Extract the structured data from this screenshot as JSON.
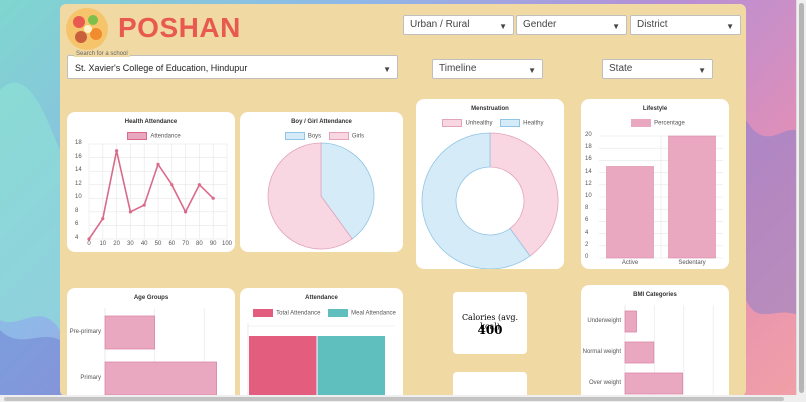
{
  "brand": "POSHAN",
  "filters": {
    "urban_rural": "Urban / Rural",
    "gender": "Gender",
    "district": "District",
    "timeline": "Timeline",
    "state": "State"
  },
  "school": {
    "caption": "Search for a school",
    "value": "St. Xavier's College of Education, Hindupur"
  },
  "colors": {
    "pink": "#d96a8a",
    "pink_fill": "#eaa7c0",
    "blue_fill": "#d6ebf8",
    "blue_line": "#8fc5e6",
    "teal": "#5fbfbf",
    "red": "#e35d7f"
  },
  "charts": {
    "health": {
      "title": "Health Attendance",
      "legend": "Attendance",
      "y_ticks": [
        "18",
        "16",
        "14",
        "12",
        "10",
        "8",
        "6",
        "4"
      ],
      "x_ticks": [
        "0",
        "10",
        "20",
        "30",
        "40",
        "50",
        "60",
        "70",
        "80",
        "90",
        "100"
      ]
    },
    "boygirl": {
      "title": "Boy / Girl Attendance",
      "legend_a": "Boys",
      "legend_b": "Girls"
    },
    "menstruation": {
      "title": "Menstruation",
      "legend_a": "Unhealthy",
      "legend_b": "Healthy"
    },
    "lifestyle": {
      "title": "Lifestyle",
      "legend": "Percentage",
      "y_ticks": [
        "20",
        "18",
        "16",
        "14",
        "12",
        "10",
        "8",
        "6",
        "4",
        "2",
        "0"
      ],
      "x_ticks": [
        "Active",
        "Sedentary"
      ]
    },
    "age": {
      "title": "Age Groups",
      "labels": [
        "Pre-primary",
        "Primary"
      ]
    },
    "attendance": {
      "title": "Attendance",
      "legend_a": "Total Attendance",
      "legend_b": "Meal Attendance"
    },
    "calories": {
      "label": "Calories (avg. kcal)",
      "value": "400"
    },
    "bmi": {
      "title": "BMI Categories",
      "labels": [
        "Underweight",
        "Normal weight",
        "Over weight"
      ]
    }
  },
  "chart_data": [
    {
      "type": "line",
      "title": "Health Attendance",
      "series": [
        {
          "name": "Attendance",
          "x": [
            0,
            10,
            20,
            30,
            40,
            50,
            60,
            70,
            80,
            90
          ],
          "values": [
            4,
            7,
            17,
            8,
            9,
            15,
            12,
            8,
            12,
            10
          ]
        }
      ],
      "xlim": [
        0,
        100
      ],
      "ylim": [
        4,
        18
      ]
    },
    {
      "type": "pie",
      "title": "Boy / Girl Attendance",
      "categories": [
        "Boys",
        "Girls"
      ],
      "values": [
        40,
        60
      ]
    },
    {
      "type": "pie",
      "title": "Menstruation",
      "categories": [
        "Unhealthy",
        "Healthy"
      ],
      "values": [
        40,
        60
      ]
    },
    {
      "type": "bar",
      "title": "Lifestyle",
      "categories": [
        "Active",
        "Sedentary"
      ],
      "series": [
        {
          "name": "Percentage",
          "values": [
            15,
            20
          ]
        }
      ],
      "ylim": [
        0,
        20
      ]
    },
    {
      "type": "bar",
      "title": "Age Groups",
      "categories": [
        "Pre-primary",
        "Primary"
      ],
      "values": [
        4,
        9
      ]
    },
    {
      "type": "bar",
      "title": "Attendance",
      "series": [
        {
          "name": "Total Attendance",
          "values": [
            100
          ]
        },
        {
          "name": "Meal Attendance",
          "values": [
            100
          ]
        }
      ]
    },
    {
      "type": "bar",
      "title": "BMI Categories",
      "categories": [
        "Underweight",
        "Normal weight",
        "Over weight"
      ],
      "values": [
        2,
        5,
        10
      ]
    }
  ]
}
